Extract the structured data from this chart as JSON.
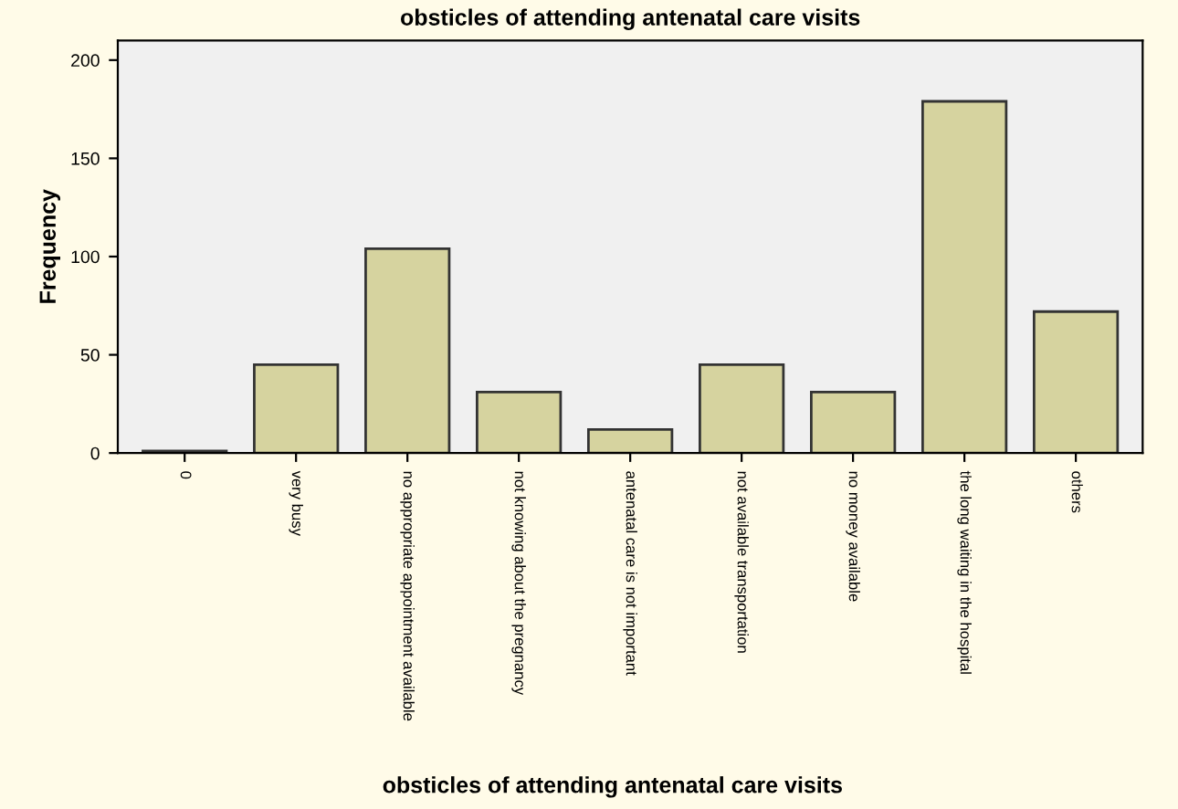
{
  "chart_data": {
    "type": "bar",
    "title": "obsticles of attending antenatal care visits",
    "xlabel": "obsticles of attending antenatal care visits",
    "ylabel": "Frequency",
    "categories": [
      "0",
      "very busy",
      "no appropriate appointment available",
      "not knowing about the pregnancy",
      "antenatal care is not important",
      "not available transportation",
      "no money available",
      "the long waiting in the hospital",
      "others"
    ],
    "values": [
      1,
      45,
      104,
      31,
      12,
      45,
      31,
      179,
      72
    ],
    "color": "#d6d39f",
    "ylim": [
      0,
      210
    ],
    "yticks": [
      0,
      50,
      100,
      150,
      200
    ],
    "grid": false,
    "legend": false
  }
}
